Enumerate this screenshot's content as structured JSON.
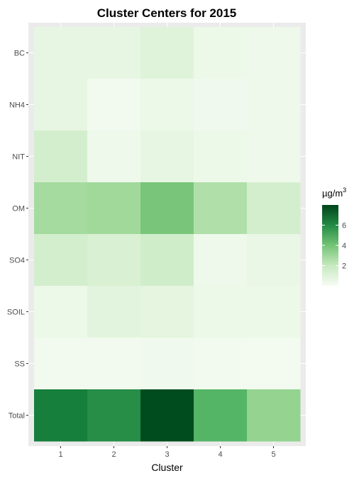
{
  "chart_data": {
    "type": "heatmap",
    "title": "Cluster Centers for 2015",
    "xlabel": "Cluster",
    "ylabel": "",
    "x_categories": [
      "1",
      "2",
      "3",
      "4",
      "5"
    ],
    "y_categories": [
      "BC",
      "NH4",
      "NIT",
      "OM",
      "SO4",
      "SOIL",
      "SS",
      "Total"
    ],
    "values": [
      [
        0.9,
        0.9,
        1.2,
        0.6,
        0.5
      ],
      [
        0.9,
        0.3,
        0.6,
        0.4,
        0.5
      ],
      [
        1.6,
        0.5,
        0.9,
        0.6,
        0.5
      ],
      [
        2.9,
        3.0,
        3.9,
        2.6,
        1.6
      ],
      [
        1.6,
        1.4,
        1.7,
        0.5,
        0.7
      ],
      [
        0.6,
        1.1,
        1.0,
        0.6,
        0.6
      ],
      [
        0.3,
        0.3,
        0.4,
        0.3,
        0.2
      ],
      [
        6.4,
        5.9,
        7.8,
        4.6,
        3.3
      ]
    ],
    "legend": {
      "title_prefix": "µg/m",
      "title_superscript": "3",
      "min": 0,
      "max": 8,
      "breaks": [
        2,
        4,
        6
      ],
      "break_labels": [
        "2",
        "4",
        "6"
      ],
      "low_color": "#f7fcf5",
      "high_color": "#00441b",
      "placement": "right"
    },
    "grid": true,
    "panel_background": "#ebebeb"
  }
}
